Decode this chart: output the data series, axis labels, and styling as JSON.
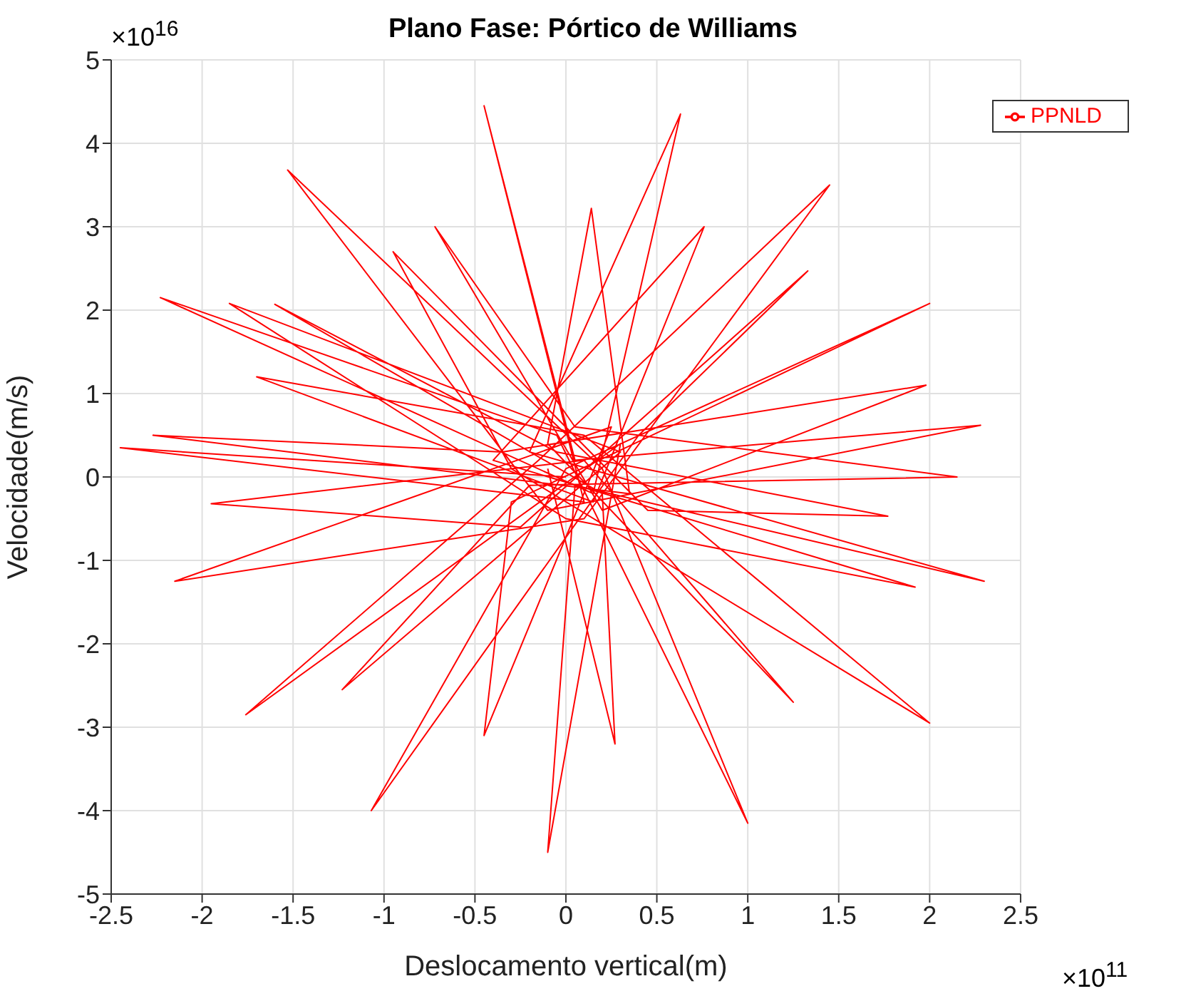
{
  "chart_data": {
    "type": "line",
    "title": "Plano Fase: Pórtico de Williams",
    "xlabel": "Deslocamento vertical(m)",
    "ylabel": "Velocidade(m/s)",
    "annotations": [
      "×10$^{16}$",
      "×10$^{11}$"
    ],
    "series": [
      {
        "name": "PPNLD",
        "color": "#ff0000",
        "x": [
          0,
          -2.45,
          0.1,
          -0.45,
          0.05,
          2.28,
          -0.1,
          -1.53,
          0.2,
          1.0,
          -0.05,
          -2.23,
          0.15,
          0.63,
          -0.2,
          2.3,
          0.05,
          -0.1,
          0.3,
          -1.76,
          -0.15,
          1.45,
          0.1,
          -2.15,
          0.25,
          -0.45,
          -0.3,
          2.0,
          0.0,
          -1.07,
          0.4,
          1.33,
          -0.25,
          -1.95,
          0.1,
          1.25,
          -0.1,
          0.14,
          0.35,
          -2.27,
          -0.35,
          1.98,
          0.2,
          -0.72,
          0.05,
          2.15,
          -0.2,
          -1.23,
          0.3,
          -1.85,
          0.0,
          1.92,
          -0.4,
          0.76,
          0.15,
          -1.7,
          0.1,
          2.0,
          -0.3,
          -0.95,
          0.45,
          1.77,
          -0.05,
          -1.6,
          0.2,
          0.27,
          -0.1
        ],
        "values": [
          0,
          0.35,
          -0.3,
          4.45,
          0.2,
          0.62,
          -0.4,
          3.68,
          0.1,
          -4.15,
          0.5,
          2.15,
          -0.2,
          4.35,
          0.3,
          -1.25,
          -0.1,
          -4.5,
          0.4,
          -2.85,
          0.2,
          3.5,
          -0.5,
          -1.25,
          0.6,
          -3.1,
          -0.3,
          2.08,
          0.1,
          -4.0,
          0.5,
          2.47,
          -0.6,
          -0.32,
          0.2,
          -2.7,
          0.4,
          3.22,
          -0.2,
          0.5,
          0.3,
          1.1,
          -0.4,
          3.0,
          0.6,
          0.0,
          -0.1,
          -2.55,
          0.3,
          2.08,
          -0.5,
          -1.32,
          0.2,
          3.0,
          -0.3,
          1.2,
          0.5,
          -2.95,
          0.1,
          2.7,
          -0.4,
          -0.47,
          0.3,
          2.07,
          -0.2,
          -3.2,
          0.1
        ]
      }
    ],
    "xlim": [
      -2.5,
      2.5
    ],
    "xticks": [
      -2.5,
      -2,
      -1.5,
      -1,
      -0.5,
      0,
      0.5,
      1,
      1.5,
      2,
      2.5
    ],
    "ylim": [
      -5,
      5
    ],
    "yticks": [
      -5,
      -4,
      -3,
      -2,
      -1,
      0,
      1,
      2,
      3,
      4,
      5
    ],
    "grid": true,
    "legend": "top right",
    "marker": "none",
    "line_style": "solid"
  }
}
